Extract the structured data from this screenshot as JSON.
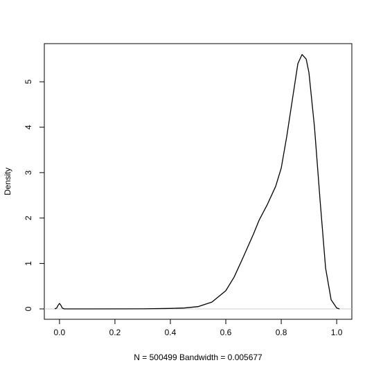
{
  "chart_data": {
    "type": "line",
    "x_label": "N = 500499   Bandwidth = 0.005677",
    "y_label": "Density",
    "x": [
      -0.017,
      -0.01,
      -0.005,
      0.0,
      0.005,
      0.01,
      0.017,
      0.1,
      0.3,
      0.4,
      0.45,
      0.5,
      0.55,
      0.6,
      0.63,
      0.66,
      0.7,
      0.72,
      0.75,
      0.78,
      0.8,
      0.82,
      0.84,
      0.86,
      0.875,
      0.89,
      0.9,
      0.92,
      0.94,
      0.96,
      0.98,
      1.0,
      1.01
    ],
    "series": [
      {
        "color": "#000000",
        "values": [
          0,
          0.02,
          0.08,
          0.12,
          0.08,
          0.02,
          0,
          0,
          0.002,
          0.01,
          0.02,
          0.05,
          0.15,
          0.4,
          0.7,
          1.1,
          1.65,
          1.95,
          2.3,
          2.7,
          3.1,
          3.8,
          4.6,
          5.4,
          5.6,
          5.5,
          5.2,
          4.0,
          2.4,
          0.9,
          0.2,
          0.02,
          0
        ]
      }
    ],
    "xlim": [
      -0.0547,
      1.0547
    ],
    "ylim": [
      -0.229,
      5.84
    ],
    "xticks": [
      {
        "value": 0,
        "label": "0.0"
      },
      0.2,
      0.4,
      0.6,
      0.8,
      {
        "value": 1,
        "label": "1.0"
      }
    ],
    "yticks": [
      0,
      1,
      2,
      3,
      4,
      5
    ],
    "zero_line": true
  }
}
